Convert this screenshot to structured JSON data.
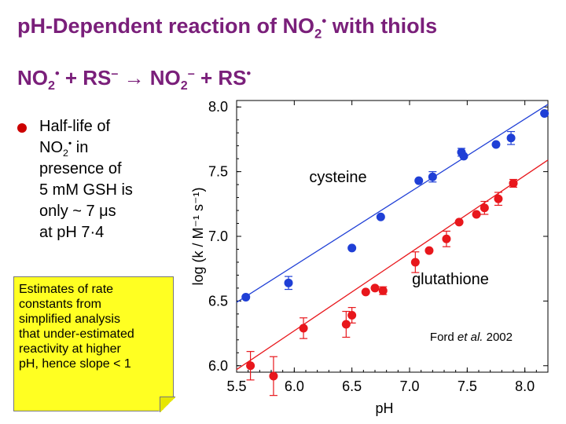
{
  "slide": {
    "title_main": "p",
    "title_rest": "H-Dependent reaction of NO",
    "title_sub": "2",
    "title_sup": "•",
    "title_end": " with thiols",
    "reaction": {
      "p1": "NO",
      "p1_sub": "2",
      "p1_sup": "•",
      "p2": " + RS",
      "p2_sup": "–",
      "arrow": " → ",
      "p3": "NO",
      "p3_sub": "2",
      "p3_sup": "–",
      "p4": " + RS",
      "p4_sup": "•"
    },
    "bullet": {
      "line1": "Half-life of",
      "line2a": "NO",
      "line2_sub": "2",
      "line2_sup": "•",
      "line2b": " in",
      "line3": "presence of",
      "line4": "5 mM GSH is",
      "line5": "only ~ 7 μs",
      "line6": "at pH 7·4"
    },
    "note": {
      "line1": "Estimates of rate",
      "line2": "constants from",
      "line3": "simplified analysis",
      "line4": "that under-estimated",
      "line5": "reactivity at higher",
      "line6": "pH, hence slope < 1"
    },
    "colors": {
      "title": "#7a1f7a",
      "note_bg": "#ffff22",
      "bullet": "#cc0000"
    }
  },
  "chart_data": {
    "type": "scatter",
    "xlabel": "pH",
    "ylabel": "log (k / M⁻¹ s⁻¹)",
    "xlim": [
      5.5,
      8.2
    ],
    "ylim": [
      5.95,
      8.05
    ],
    "xticks": [
      "5.5",
      "6.0",
      "6.5",
      "7.0",
      "7.5",
      "8.0"
    ],
    "yticks": [
      "6.0",
      "6.5",
      "7.0",
      "7.5",
      "8.0"
    ],
    "attribution_pre": "Ford ",
    "attribution_italic": "et al.",
    "attribution_post": " 2002",
    "series": [
      {
        "name": "cysteine",
        "color": "#1f3fd6",
        "fit": [
          [
            5.5,
            6.49
          ],
          [
            8.2,
            8.02
          ]
        ],
        "points": [
          {
            "x": 5.58,
            "y": 6.53,
            "err": 0.0
          },
          {
            "x": 5.95,
            "y": 6.64,
            "err": 0.05
          },
          {
            "x": 6.5,
            "y": 6.91,
            "err": 0.0
          },
          {
            "x": 6.75,
            "y": 7.15,
            "err": 0.0
          },
          {
            "x": 7.08,
            "y": 7.43,
            "err": 0.0
          },
          {
            "x": 7.2,
            "y": 7.46,
            "err": 0.04
          },
          {
            "x": 7.45,
            "y": 7.65,
            "err": 0.03
          },
          {
            "x": 7.47,
            "y": 7.62,
            "err": 0.0
          },
          {
            "x": 7.75,
            "y": 7.71,
            "err": 0.0
          },
          {
            "x": 7.88,
            "y": 7.76,
            "err": 0.05
          },
          {
            "x": 8.17,
            "y": 7.95,
            "err": 0.0
          }
        ]
      },
      {
        "name": "glutathione",
        "color": "#e8171c",
        "fit": [
          [
            5.5,
            5.97
          ],
          [
            8.2,
            7.59
          ]
        ],
        "points": [
          {
            "x": 5.62,
            "y": 6.0,
            "err": 0.11
          },
          {
            "x": 5.82,
            "y": 5.92,
            "err": 0.15
          },
          {
            "x": 6.08,
            "y": 6.29,
            "err": 0.08
          },
          {
            "x": 6.45,
            "y": 6.32,
            "err": 0.1
          },
          {
            "x": 6.5,
            "y": 6.39,
            "err": 0.06
          },
          {
            "x": 6.62,
            "y": 6.57,
            "err": 0.0
          },
          {
            "x": 6.7,
            "y": 6.6,
            "err": 0.0
          },
          {
            "x": 6.77,
            "y": 6.58,
            "err": 0.03
          },
          {
            "x": 7.05,
            "y": 6.8,
            "err": 0.08
          },
          {
            "x": 7.17,
            "y": 6.89,
            "err": 0.0
          },
          {
            "x": 7.32,
            "y": 6.98,
            "err": 0.06
          },
          {
            "x": 7.43,
            "y": 7.11,
            "err": 0.0
          },
          {
            "x": 7.58,
            "y": 7.17,
            "err": 0.0
          },
          {
            "x": 7.65,
            "y": 7.22,
            "err": 0.05
          },
          {
            "x": 7.77,
            "y": 7.29,
            "err": 0.05
          },
          {
            "x": 7.9,
            "y": 7.41,
            "err": 0.03
          }
        ]
      }
    ]
  }
}
